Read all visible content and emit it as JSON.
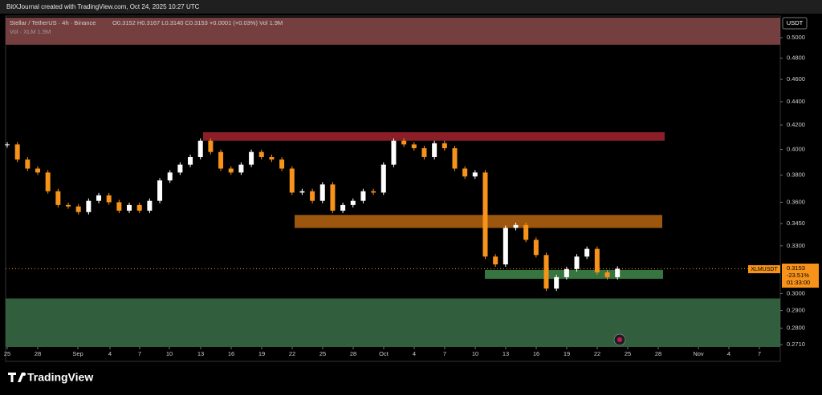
{
  "header": {
    "credit": "BitXJournal created with TradingView.com, Oct 24, 2025 10:27 UTC"
  },
  "legend": {
    "symbol": "Stellar / TetherUS · 4h · Binance",
    "ohlc": "O0.3152 H0.3167 L0.3140 C0.3153 +0.0001 (+0.03%) Vol 1.9M",
    "volume": "Vol · XLM 1.9M"
  },
  "price_tag": {
    "symbol": "XLMUSDT",
    "price": "0.3153",
    "change": "-23.51%",
    "countdown": "01:33:00"
  },
  "currency": "USDT",
  "footer": {
    "logo": "TradingView"
  },
  "chart_data": {
    "type": "candlestick",
    "log_scale": true,
    "ylim": [
      0.2697,
      0.5204
    ],
    "yticks": [
      {
        "value": 0.5,
        "label": "0.5000"
      },
      {
        "value": 0.48,
        "label": "0.4800"
      },
      {
        "value": 0.46,
        "label": "0.4600"
      },
      {
        "value": 0.44,
        "label": "0.4400"
      },
      {
        "value": 0.42,
        "label": "0.4200"
      },
      {
        "value": 0.4,
        "label": "0.4000"
      },
      {
        "value": 0.38,
        "label": "0.3800"
      },
      {
        "value": 0.36,
        "label": "0.3600"
      },
      {
        "value": 0.345,
        "label": "0.3450"
      },
      {
        "value": 0.33,
        "label": "0.3300"
      },
      {
        "value": 0.3,
        "label": "0.3000"
      },
      {
        "value": 0.29,
        "label": "0.2900"
      },
      {
        "value": 0.28,
        "label": "0.2800"
      },
      {
        "value": 0.271,
        "label": "0.2710"
      }
    ],
    "xticks": [
      "25",
      "28",
      "Sep",
      "4",
      "7",
      "10",
      "13",
      "16",
      "19",
      "22",
      "25",
      "28",
      "Oct",
      "4",
      "7",
      "10",
      "13",
      "16",
      "19",
      "22",
      "25",
      "28",
      "Nov",
      "4",
      "7"
    ],
    "series": [
      {
        "name": "XLMUSDT",
        "up_color": "#ffffff",
        "down_color": "#f7931a",
        "values": [
          0.404,
          0.392,
          0.385,
          0.382,
          0.368,
          0.358,
          0.357,
          0.353,
          0.361,
          0.365,
          0.36,
          0.354,
          0.358,
          0.354,
          0.361,
          0.376,
          0.382,
          0.388,
          0.394,
          0.407,
          0.398,
          0.385,
          0.382,
          0.388,
          0.398,
          0.394,
          0.392,
          0.385,
          0.367,
          0.368,
          0.361,
          0.373,
          0.354,
          0.358,
          0.361,
          0.368,
          0.367,
          0.388,
          0.407,
          0.404,
          0.401,
          0.394,
          0.405,
          0.401,
          0.385,
          0.379,
          0.382,
          0.323,
          0.318,
          0.342,
          0.344,
          0.334,
          0.324,
          0.303,
          0.31,
          0.315,
          0.323,
          0.328,
          0.313,
          0.31,
          0.3153
        ]
      }
    ],
    "zones": [
      {
        "low": 0.493,
        "high": 0.5204,
        "color": "#8a4a4a"
      },
      {
        "low": 0.407,
        "high": 0.414,
        "color": "#a3232e"
      },
      {
        "low": 0.342,
        "high": 0.351,
        "color": "#b8650f"
      },
      {
        "low": 0.309,
        "high": 0.3145,
        "color": "#3f8a4a"
      },
      {
        "low": 0.2697,
        "high": 0.2971,
        "color": "#3a6e47"
      }
    ]
  }
}
